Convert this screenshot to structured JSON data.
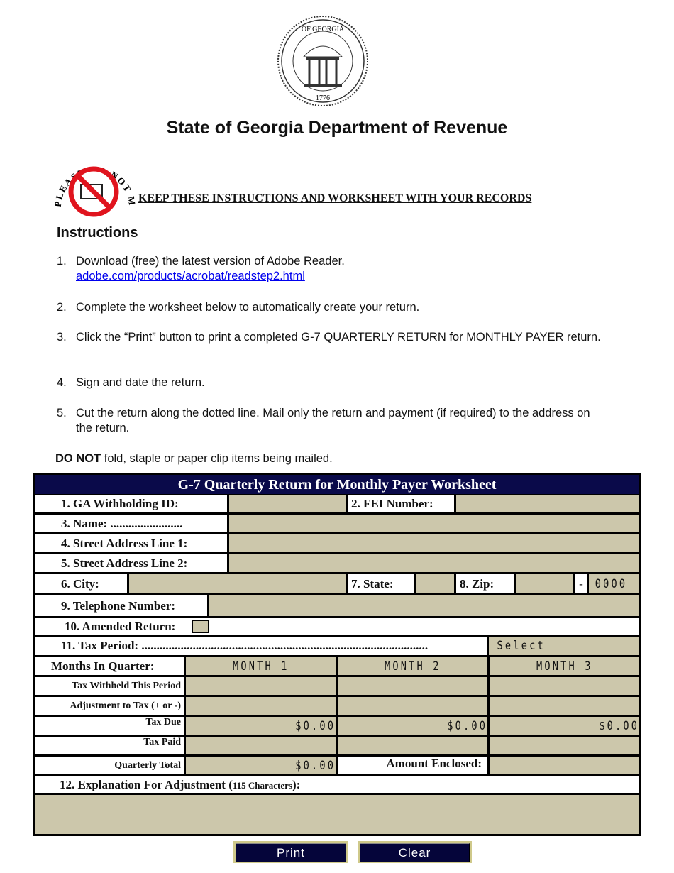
{
  "header": {
    "title": "State of Georgia Department of Revenue",
    "seal_text": "STATE OF GEORGIA 1776 CONSTITUTION WISDOM JUSTICE MODERATION",
    "no_mail_text": "PLEASE DO NOT MAIL!",
    "keep_notice": "KEEP THESE INSTRUCTIONS AND WORKSHEET WITH YOUR RECORDS"
  },
  "instructions": {
    "heading": "Instructions",
    "items": [
      {
        "num": "1.",
        "text": "Download (free) the latest version of Adobe Reader.",
        "link": "adobe.com/products/acrobat/readstep2.html"
      },
      {
        "num": "2.",
        "text": "Complete the worksheet below to automatically create your return."
      },
      {
        "num": "3.",
        "text": "Click the “Print” button to print a completed G-7 QUARTERLY RETURN for MONTHLY PAYER return."
      },
      {
        "num": "4.",
        "text": "Sign and date the return."
      },
      {
        "num": "5.",
        "text": "Cut the return along the dotted line.  Mail only the return and payment (if required) to the address on the return."
      }
    ],
    "note_bold": "DO NOT",
    "note_rest": " fold, staple or paper clip items being mailed."
  },
  "form": {
    "title": "G-7 Quarterly Return for Monthly Payer Worksheet",
    "labels": {
      "ga_id": "1.  GA Withholding ID:",
      "fei": "2. FEI Number:",
      "name": "3.  Name: ........................",
      "addr1": "4.  Street Address Line 1:",
      "addr2": "5.  Street Address Line 2:",
      "city": "6.  City:",
      "state": "7. State:",
      "zip": "8.  Zip:",
      "zip_dash": "-",
      "phone": "9.  Telephone Number:",
      "amended": "10.   Amended Return:",
      "tax_period": "11.  Tax Period:  ...............................................................................................",
      "months": "Months In Quarter:",
      "withheld": "Tax Withheld This Period",
      "adjustment": "Adjustment to Tax (+ or -)",
      "tax_due": "Tax Due",
      "tax_paid": "Tax Paid",
      "quarterly_total": "Quarterly Total",
      "amount_enclosed": "Amount Enclosed:",
      "explanation": "12.  Explanation For Adjustment (",
      "explanation_small": "115 Characters",
      "explanation_end": "):"
    },
    "values": {
      "zip_ext": "0000",
      "tax_period": "Select",
      "month1": "MONTH 1",
      "month2": "MONTH 2",
      "month3": "MONTH 3",
      "tax_due1": "$0.00",
      "tax_due2": "$0.00",
      "tax_due3": "$0.00",
      "quarterly_total": "$0.00"
    },
    "buttons": {
      "print": "Print",
      "clear": "Clear"
    }
  },
  "colors": {
    "field": "#ccc7ab",
    "header": "#0a0a4a",
    "button_border": "#cfc98a"
  }
}
